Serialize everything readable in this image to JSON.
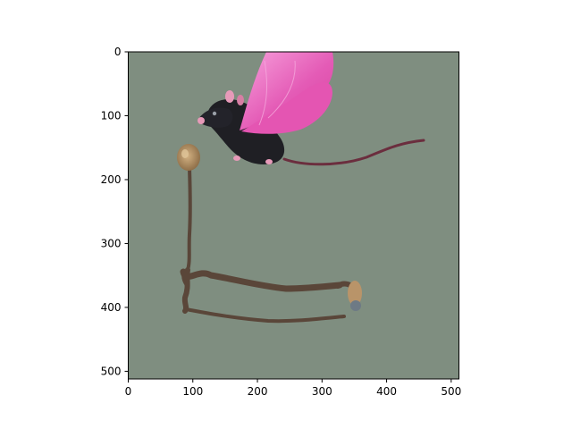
{
  "chart_data": {
    "type": "image",
    "title": "",
    "xlabel": "",
    "ylabel": "",
    "xlim": [
      0,
      512
    ],
    "ylim": [
      512,
      0
    ],
    "x_ticks": [
      0,
      100,
      200,
      300,
      400,
      500
    ],
    "y_ticks": [
      0,
      100,
      200,
      300,
      400,
      500
    ],
    "grid": false,
    "legend": "none",
    "image_subject": "black mouse with pink wings flying above a bent twig with a seed pod"
  },
  "colors": {
    "background": "#7f8e80",
    "wing": "#e45bb6",
    "wing_light": "#f08ad0",
    "mouse_body": "#1f1f24",
    "mouse_pink": "#e79ab9",
    "tail": "#6b2e3e",
    "twig": "#5a4639",
    "seed": "#b08b5d"
  }
}
